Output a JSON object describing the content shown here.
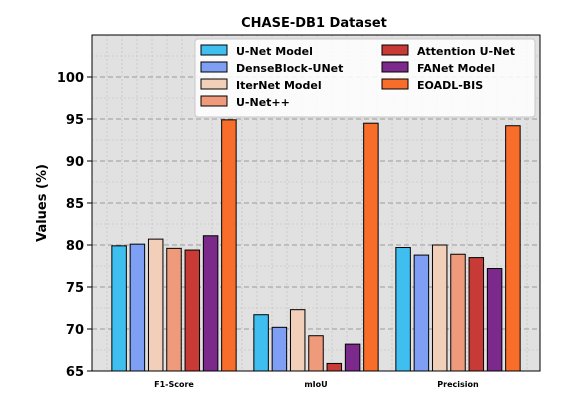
{
  "chart_data": {
    "type": "bar",
    "title": "CHASE-DB1 Dataset",
    "xlabel": "",
    "ylabel": "Values (%)",
    "ylim": [
      65,
      105
    ],
    "yticks": [
      65,
      70,
      75,
      80,
      85,
      90,
      95,
      100
    ],
    "grid": true,
    "legend_position": "top-right",
    "categories": [
      "F1-Score",
      "mIoU",
      "Precision"
    ],
    "series": [
      {
        "name": "U-Net Model",
        "color": "#3fbfef",
        "values": [
          79.9,
          71.7,
          79.7
        ]
      },
      {
        "name": "DenseBlock-UNet",
        "color": "#7f9ff5",
        "values": [
          80.1,
          70.2,
          78.8
        ]
      },
      {
        "name": "IterNet Model",
        "color": "#f2cfb8",
        "values": [
          80.7,
          72.3,
          80.0
        ]
      },
      {
        "name": "U-Net++",
        "color": "#f09a7c",
        "values": [
          79.6,
          69.2,
          78.9
        ]
      },
      {
        "name": "Attention  U-Net",
        "color": "#c83a35",
        "values": [
          79.4,
          65.9,
          78.5
        ]
      },
      {
        "name": "FANet Model",
        "color": "#7b2a8c",
        "values": [
          81.1,
          68.2,
          77.2
        ]
      },
      {
        "name": "EOADL-BIS",
        "color": "#f86d2a",
        "values": [
          94.9,
          94.5,
          94.2
        ]
      }
    ]
  }
}
